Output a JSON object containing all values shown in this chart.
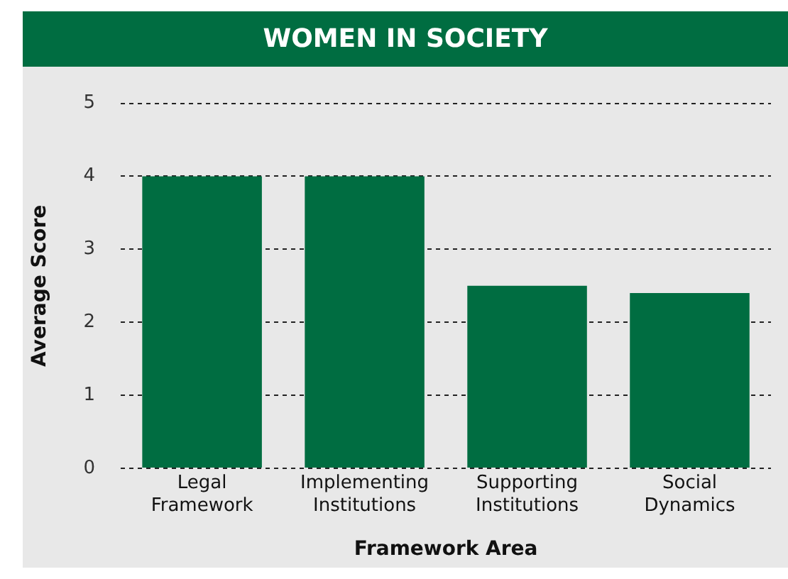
{
  "chart_data": {
    "type": "bar",
    "title": "WOMEN IN SOCIETY",
    "xlabel": "Framework Area",
    "ylabel": "Average Score",
    "categories": [
      "Legal Framework",
      "Implementing Institutions",
      "Supporting Institutions",
      "Social Dynamics"
    ],
    "values": [
      4,
      4,
      2.5,
      2.4
    ],
    "color": "#006d41",
    "ylim": [
      0,
      5
    ],
    "yticks": [
      0,
      1,
      2,
      3,
      4,
      5
    ],
    "grid": "y",
    "legend": false
  }
}
